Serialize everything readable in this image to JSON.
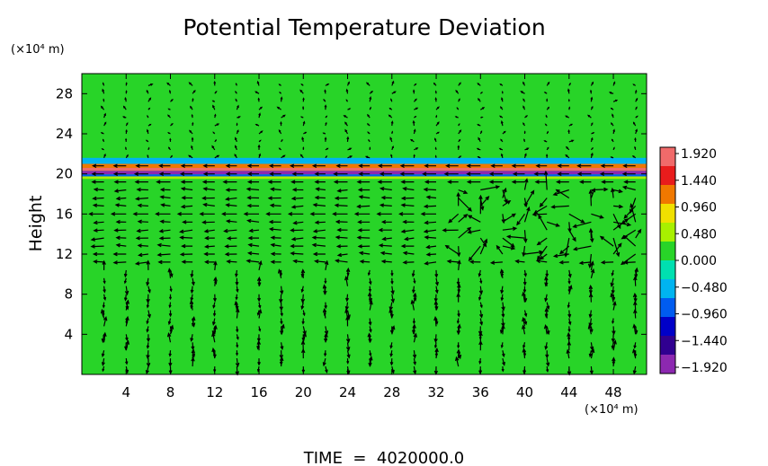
{
  "chart_data": {
    "type": "heatmap",
    "title": "Potential Temperature Deviation",
    "ylabel": "Height",
    "y_unit": "(×10⁴ m)",
    "x_unit": "(×10⁴ m)",
    "footer": "TIME  =  4020000.0",
    "xlim": [
      0,
      51
    ],
    "ylim": [
      0,
      30
    ],
    "x_ticks": [
      4,
      8,
      12,
      16,
      20,
      24,
      28,
      32,
      36,
      40,
      44,
      48
    ],
    "y_ticks": [
      4,
      8,
      12,
      16,
      20,
      24,
      28
    ],
    "background_value": 0.0,
    "field_layers": [
      {
        "ymin": 21.0,
        "ymax": 21.6,
        "value": -0.6
      },
      {
        "ymin": 20.6,
        "ymax": 21.0,
        "value": 1.0
      },
      {
        "ymin": 20.3,
        "ymax": 20.6,
        "value": 1.9
      },
      {
        "ymin": 19.95,
        "ymax": 20.3,
        "value": -1.9
      },
      {
        "ymin": 19.75,
        "ymax": 19.95,
        "value": -0.9
      },
      {
        "ymin": 19.5,
        "ymax": 19.75,
        "value": 0.5
      }
    ],
    "colorbar": {
      "labels": [
        "1.920",
        "1.440",
        "0.960",
        "0.480",
        "0.000",
        "−0.480",
        "−0.960",
        "−1.440",
        "−1.920"
      ],
      "min": -1.92,
      "max": 1.92,
      "colors": [
        "#f06a6a",
        "#e81c1c",
        "#f07800",
        "#f0e000",
        "#a8f000",
        "#28d428",
        "#00e0b0",
        "#00b4f0",
        "#005cf0",
        "#0000c8",
        "#300090",
        "#8c28b0"
      ]
    },
    "wind_field": {
      "x_start": 2,
      "x_step": 2,
      "cols": 25,
      "y_start": 0.8,
      "y_step": 0.8,
      "rows": 36,
      "jet_level": 16.2,
      "turbulent_region": {
        "x": [
          34,
          50
        ],
        "y": [
          12,
          19
        ]
      }
    }
  }
}
